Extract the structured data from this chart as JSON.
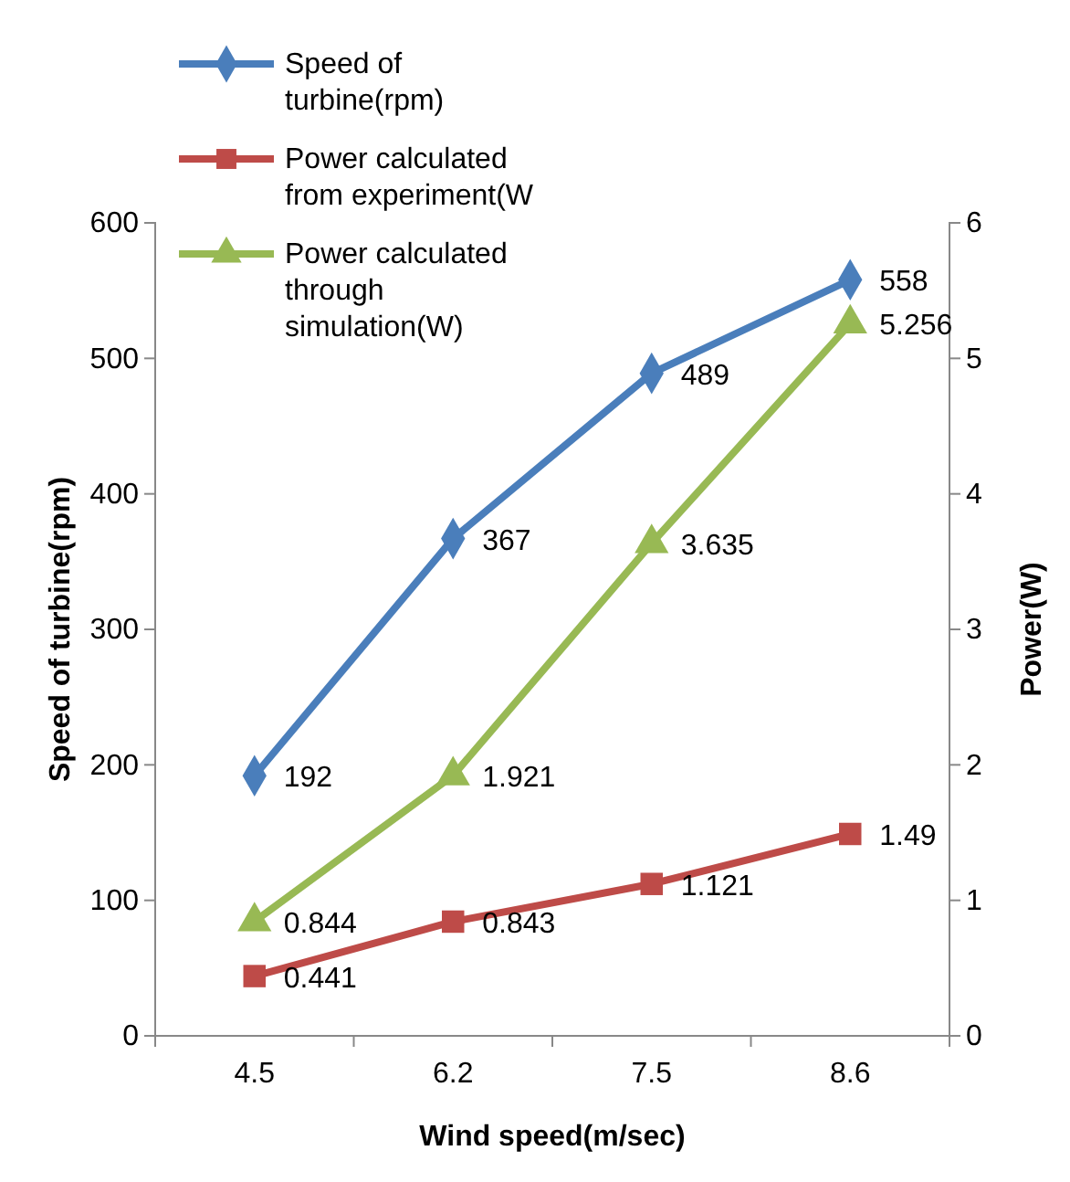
{
  "chart_data": {
    "type": "line",
    "xlabel": "Wind speed(m/sec)",
    "ylabel": "Speed of turbine(rpm)",
    "y2label": "Power(W)",
    "categories": [
      "4.5",
      "6.2",
      "7.5",
      "8.6"
    ],
    "series": [
      {
        "name": "Speed of turbine(rpm)",
        "color": "#4a7ebb",
        "marker": "diamond",
        "values": [
          192,
          367,
          489,
          558
        ]
      },
      {
        "name": "Power calculated from experiment(W",
        "color": "#be4b48",
        "marker": "square",
        "axis": "y2",
        "values": [
          0.441,
          0.843,
          1.121,
          1.49
        ]
      },
      {
        "name": "Power calculated through simulation(W)",
        "color": "#98b954",
        "marker": "triangle",
        "axis": "y2",
        "values": [
          0.844,
          1.921,
          3.635,
          5.256
        ]
      }
    ],
    "ylim": [
      0,
      600
    ],
    "yticks": [
      0,
      100,
      200,
      300,
      400,
      500,
      600
    ],
    "y2lim": [
      0,
      6
    ],
    "y2ticks": [
      0,
      1,
      2,
      3,
      4,
      5,
      6
    ],
    "data_labels": true,
    "legend": "top left",
    "grid": false
  }
}
